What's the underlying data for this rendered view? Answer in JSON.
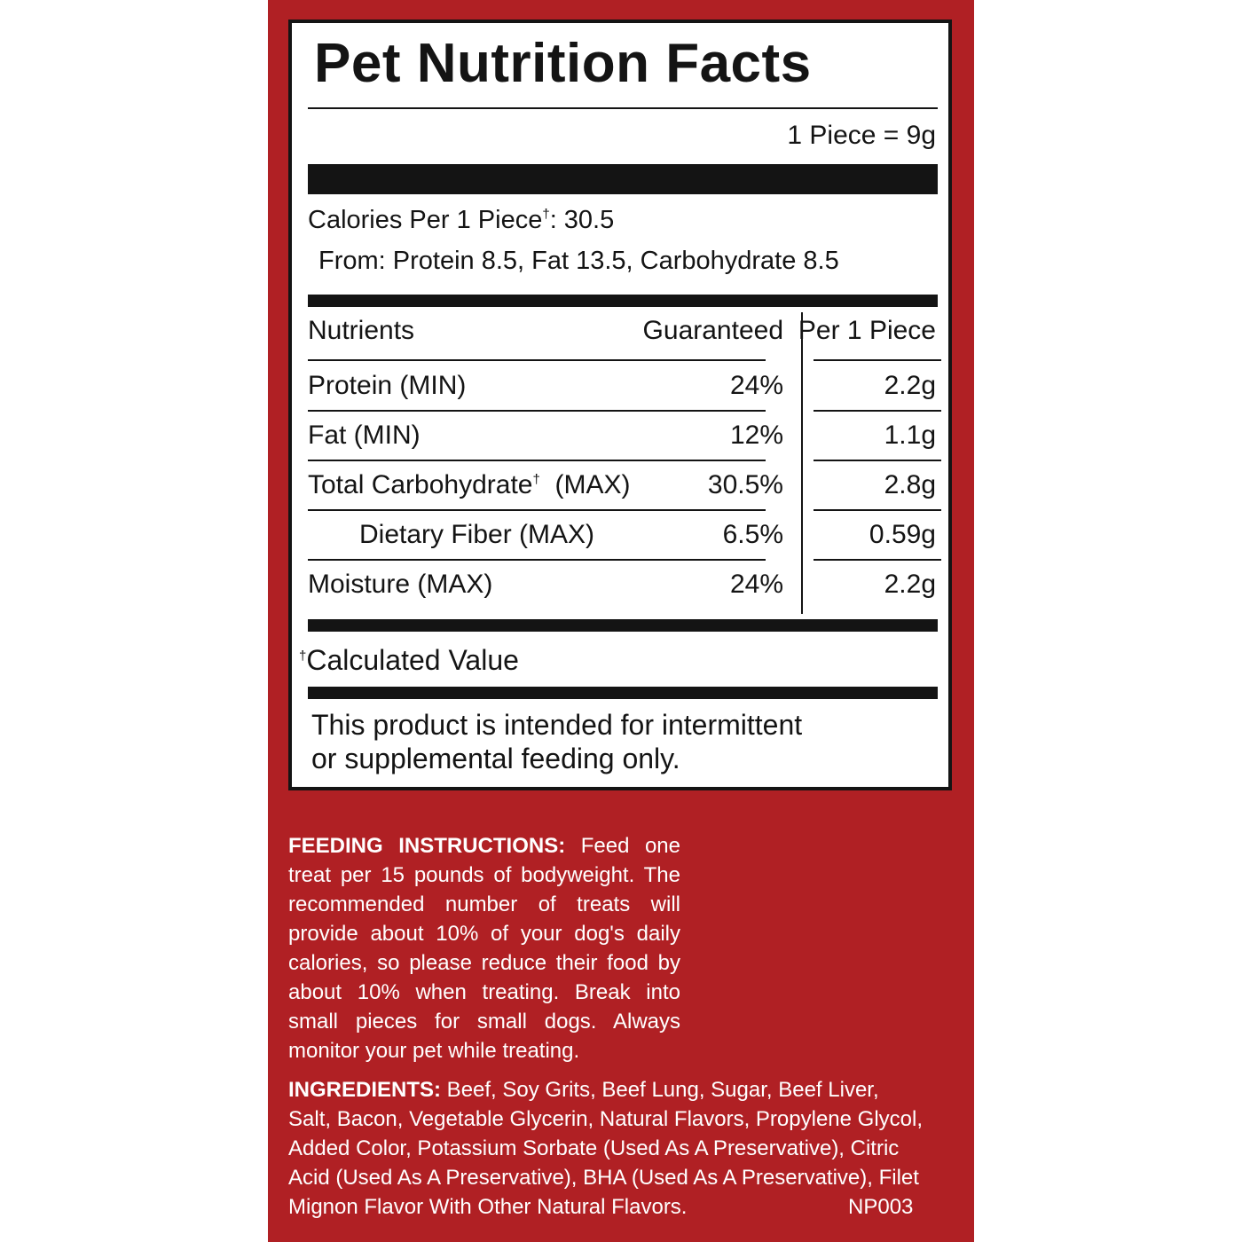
{
  "colors": {
    "panel": "#b02024",
    "ink": "#141414",
    "label_bg": "#ffffff"
  },
  "facts": {
    "title": "Pet Nutrition Facts",
    "serving": "1 Piece = 9g",
    "calories_prefix": "Calories Per 1 Piece",
    "calories_dagger": "†",
    "calories_value": ": 30.5",
    "calories_from": "From: Protein 8.5, Fat 13.5, Carbohydrate 8.5",
    "headers": {
      "nutrients": "Nutrients",
      "guaranteed": "Guaranteed",
      "per_piece": "Per 1 Piece"
    },
    "rows": [
      {
        "name": "Protein (MIN)",
        "guaranteed": "24%",
        "per_piece": "2.2g"
      },
      {
        "name": "Fat (MIN)",
        "guaranteed": "12%",
        "per_piece": "1.1g"
      },
      {
        "name": "Total Carbohydrate",
        "dagger": "†",
        "qualifier": "  (MAX)",
        "guaranteed": "30.5%",
        "per_piece": "2.8g"
      },
      {
        "name": "Dietary Fiber (MAX)",
        "guaranteed": "6.5%",
        "per_piece": "0.59g"
      },
      {
        "name": "Moisture (MAX)",
        "guaranteed": "24%",
        "per_piece": "2.2g"
      }
    ],
    "calc_dagger": "†",
    "calc_note": "Calculated Value",
    "intended_line1": "This product is intended for intermittent",
    "intended_line2": "or supplemental feeding only."
  },
  "feeding": {
    "heading": "FEEDING INSTRUCTIONS:",
    "text": " Feed one treat per 15 pounds of bodyweight. The recommended number of treats will provide about 10% of your dog's daily calories, so please reduce their food by about 10% when treating. Break into small pieces for small dogs. Always monitor your pet while treating."
  },
  "ingredients": {
    "heading": "INGREDIENTS:",
    "text": " Beef, Soy Grits, Beef Lung, Sugar, Beef Liver, Salt, Bacon, Vegetable Glycerin, Natural Flavors, Propylene Glycol, Added Color, Potassium Sorbate (Used As A Preservative), Citric Acid (Used As A Preservative), BHA (Used As A Preservative), Filet Mignon Flavor With Other Natural Flavors.",
    "code": "NP003"
  }
}
